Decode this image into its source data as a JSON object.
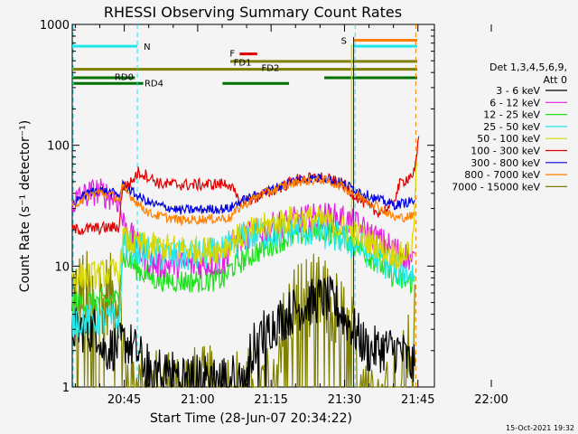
{
  "chart_data": {
    "type": "line",
    "title": "RHESSI Observing Summary Count Rates",
    "xlabel": "Start Time (28-Jun-07 20:34:22)",
    "ylabel": "Count Rate (s⁻¹ detector⁻¹)",
    "y_scale": "log",
    "ylim": [
      1,
      1000
    ],
    "xlim_minutes_after_start": [
      0,
      74
    ],
    "y_ticks": [
      "1",
      "10",
      "100",
      "1000"
    ],
    "x_ticks": [
      {
        "label": "20:45",
        "t": 10.63
      },
      {
        "label": "21:00",
        "t": 25.63
      },
      {
        "label": "21:15",
        "t": 40.63
      },
      {
        "label": "21:30",
        "t": 55.63
      },
      {
        "label": "21:45",
        "t": 70.63
      },
      {
        "label": "22:00",
        "t": 85.63
      }
    ],
    "legend": {
      "header1": "Det 1,3,4,5,6,9,",
      "header2": "Att 0",
      "placement": "right",
      "entries": [
        {
          "label": "3 - 6 keV",
          "color": "#000000"
        },
        {
          "label": "6 - 12 keV",
          "color": "#e020e0"
        },
        {
          "label": "12 - 25 keV",
          "color": "#20e020"
        },
        {
          "label": "25 - 50 keV",
          "color": "#20e8e8"
        },
        {
          "label": "50 - 100 keV",
          "color": "#d8d800"
        },
        {
          "label": "100 - 300 keV",
          "color": "#e00000"
        },
        {
          "label": "300 - 800 keV",
          "color": "#0000e0"
        },
        {
          "label": "800 - 7000 keV",
          "color": "#ff8000"
        },
        {
          "label": "7000 - 15000 keV",
          "color": "#808000"
        }
      ]
    },
    "flags": [
      {
        "label": "N",
        "color": "#20e8e8"
      },
      {
        "label": "S",
        "color": "#ff8000"
      },
      {
        "label": "F",
        "color": "#e00000"
      },
      {
        "label": "FD1",
        "color": "#808000"
      },
      {
        "label": "FD2",
        "color": "#808000"
      },
      {
        "label": "RD0",
        "color": "#007000"
      },
      {
        "label": "RD4",
        "color": "#007000"
      }
    ],
    "timestamp": "15-Oct-2021 19:32"
  }
}
